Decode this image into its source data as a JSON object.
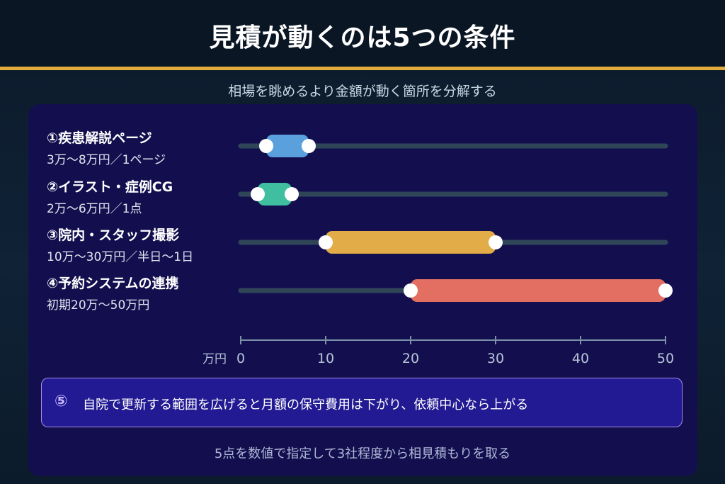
{
  "header": {
    "title": "見積が動くのは5つの条件",
    "subtitle": "相場を眺めるより金額が動く箇所を分解する"
  },
  "chart_data": {
    "type": "bar",
    "orientation": "horizontal-range",
    "categories": [
      {
        "name": "①疾患解説ページ",
        "range_label": "3万〜8万円／1ページ",
        "low": 3,
        "high": 8,
        "color": "#5aa0dc"
      },
      {
        "name": "②イラスト・症例CG",
        "range_label": "2万〜6万円／1点",
        "low": 2,
        "high": 6,
        "color": "#3fbf9f"
      },
      {
        "name": "③院内・スタッフ撮影",
        "range_label": "10万〜30万円／半日〜1日",
        "low": 10,
        "high": 30,
        "color": "#e2ad48"
      },
      {
        "name": "④予約システムの連携",
        "range_label": "初期20万〜50万円",
        "low": 20,
        "high": 50,
        "color": "#e36f62"
      }
    ],
    "xlabel": "万円",
    "xlim": [
      0,
      50
    ],
    "ticks": [
      0,
      10,
      20,
      30,
      40,
      50
    ]
  },
  "note": {
    "number": "⑤",
    "text": "自院で更新する範囲を広げると月額の保守費用は下がり、依頼中心なら上がる"
  },
  "footer": "5点を数値で指定して3社程度から相見積もりを取る",
  "colors": {
    "accent_gold": "#e2ad3a",
    "panel": "#130f4f",
    "track": "#2f4558",
    "note_border": "#a58ee6"
  }
}
